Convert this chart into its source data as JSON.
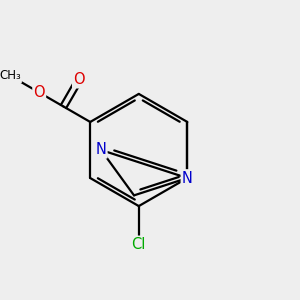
{
  "background_color": "#eeeeee",
  "atom_colors": {
    "C": "#000000",
    "N": "#0000cc",
    "O": "#dd0000",
    "Cl": "#00aa00"
  },
  "bond_color": "#000000",
  "bond_width": 1.6,
  "font_size_atoms": 10.5,
  "font_size_small": 8.5,
  "xlim": [
    -2.5,
    2.5
  ],
  "ylim": [
    -2.5,
    2.5
  ]
}
